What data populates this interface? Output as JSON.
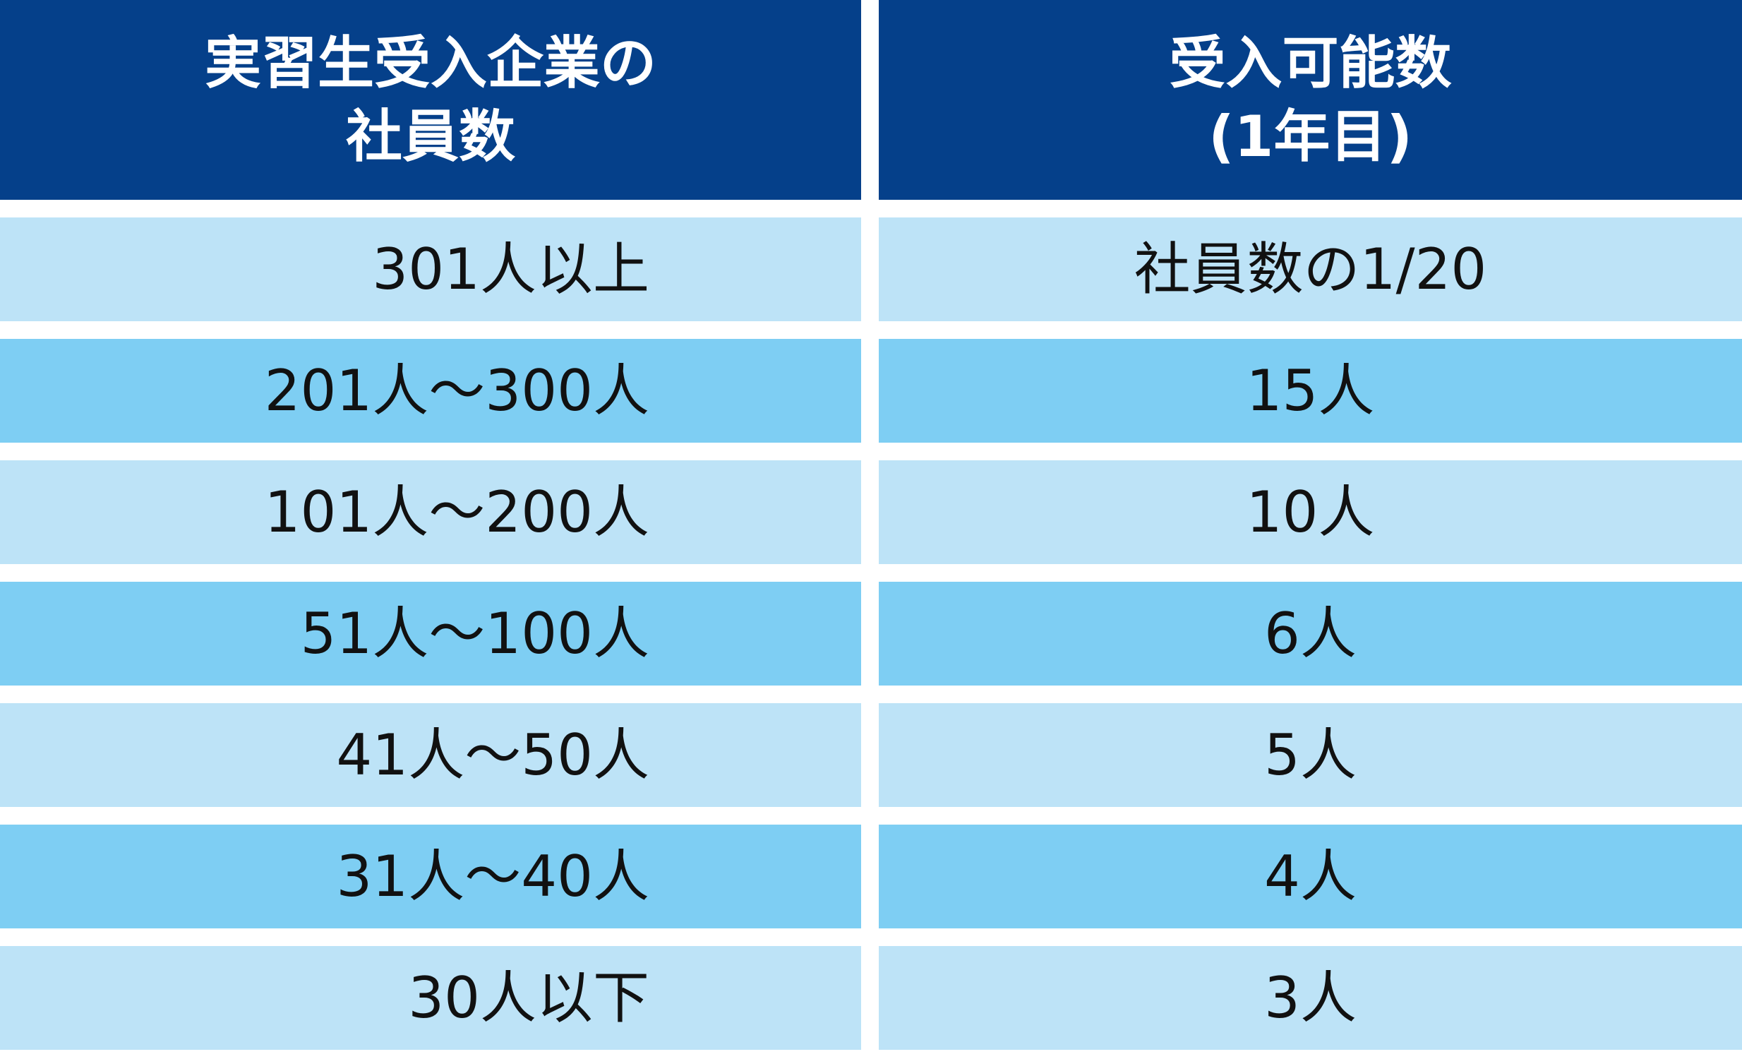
{
  "table": {
    "headers": [
      "実習生受入企業の\n社員数",
      "受入可能数\n(1年目)"
    ],
    "rows": [
      [
        "301人以上",
        "社員数の1/20"
      ],
      [
        "201人～300人",
        "15人"
      ],
      [
        "101人～200人",
        "10人"
      ],
      [
        "51人～100人",
        "6人"
      ],
      [
        "41人～50人",
        "5人"
      ],
      [
        "31人～40人",
        "4人"
      ],
      [
        "30人以下",
        "3人"
      ]
    ]
  }
}
